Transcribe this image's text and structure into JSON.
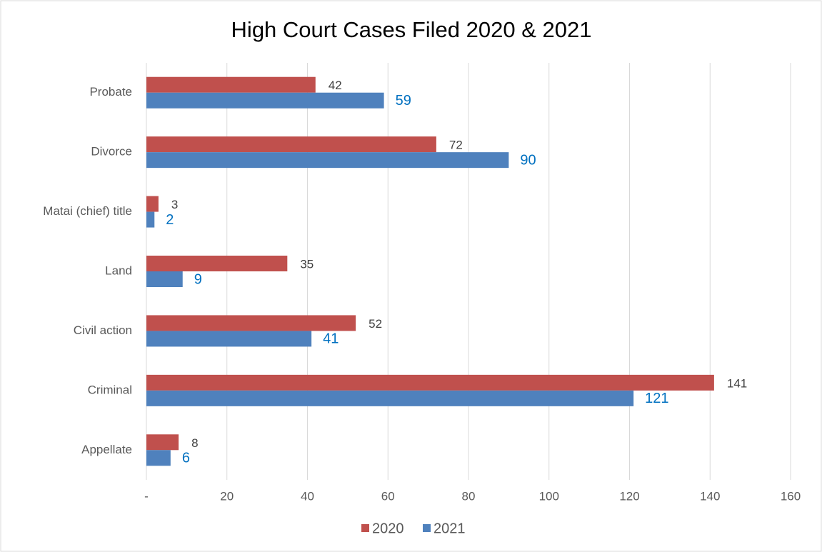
{
  "chart_data": {
    "type": "bar",
    "orientation": "horizontal",
    "title": "High Court Cases Filed 2020 & 2021",
    "categories": [
      "Probate",
      "Divorce",
      "Matai (chief) title",
      "Land",
      "Civil action",
      "Criminal",
      "Appellate"
    ],
    "series": [
      {
        "name": "2020",
        "color": "#c0504d",
        "values": [
          42,
          72,
          3,
          35,
          52,
          141,
          8
        ]
      },
      {
        "name": "2021",
        "color": "#4f81bd",
        "values": [
          59,
          90,
          2,
          9,
          41,
          121,
          6
        ]
      }
    ],
    "xlim": [
      0,
      160
    ],
    "xticks": [
      {
        "value": 0,
        "label": "-"
      },
      20,
      40,
      60,
      80,
      100,
      120,
      140,
      160
    ],
    "grid": true,
    "legend": "bottom"
  }
}
